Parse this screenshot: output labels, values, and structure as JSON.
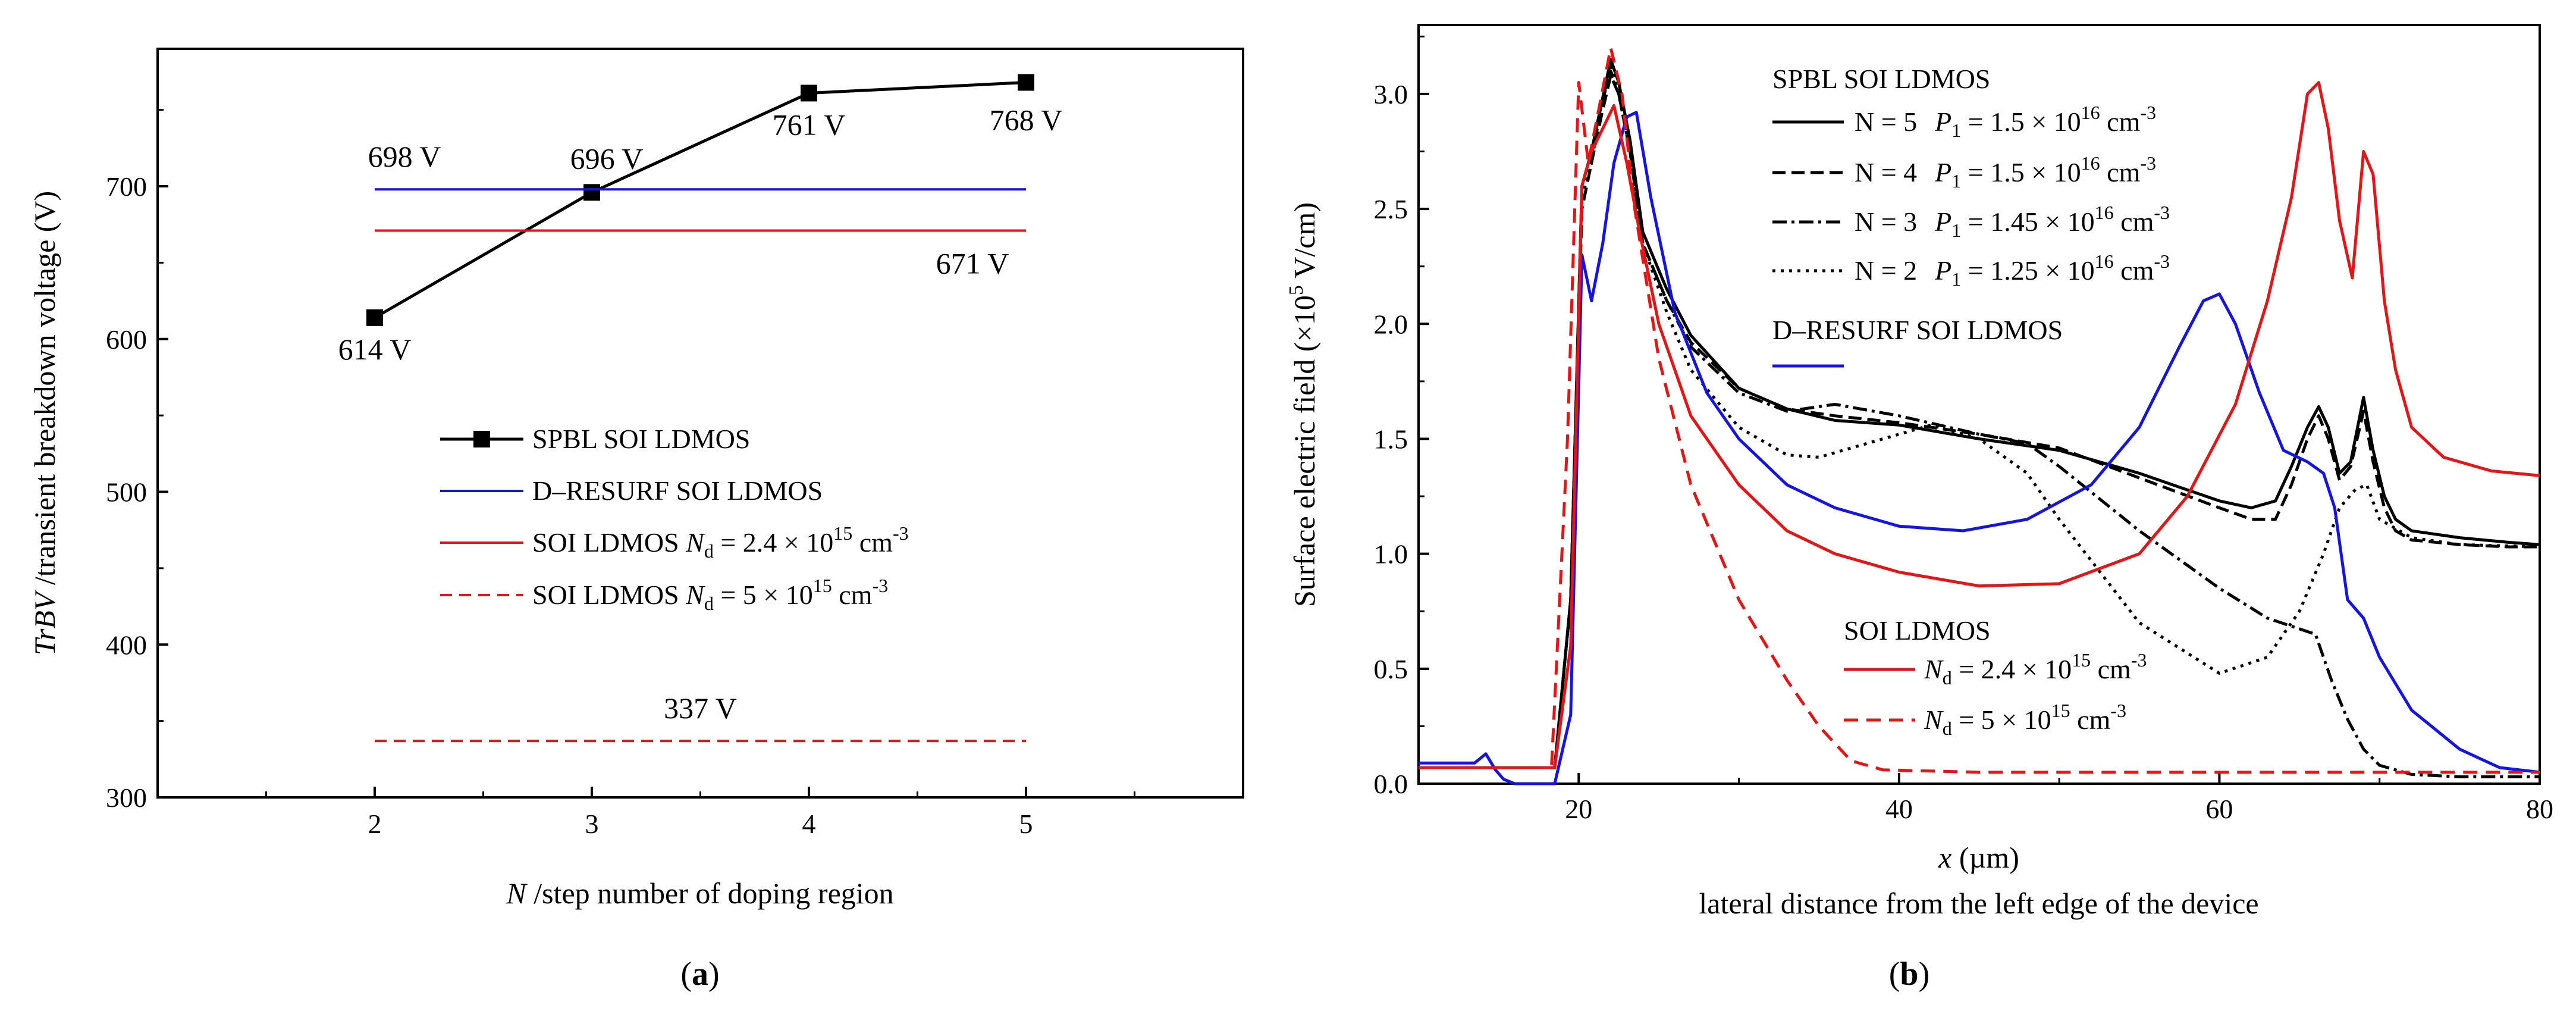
{
  "chart_data": [
    {
      "panel_label": "a",
      "type": "line",
      "xlabel_italic": "N",
      "xlabel_rest": " /step number of doping region",
      "ylabel_italic": "TrBV",
      "ylabel_rest": " /transient breakdown voltage (V)",
      "xlim": [
        1,
        6
      ],
      "ylim": [
        300,
        790
      ],
      "xticks": [
        2,
        3,
        4,
        5
      ],
      "yticks": [
        300,
        400,
        500,
        600,
        700
      ],
      "series": [
        {
          "key": "spbl",
          "name": "SPBL SOI LDMOS",
          "color": "#000000",
          "style": "solid-square",
          "x": [
            2,
            3,
            4,
            5
          ],
          "y": [
            614,
            696,
            761,
            768
          ]
        },
        {
          "key": "dresurf",
          "name": "D–RESURF SOI LDMOS",
          "color": "#1414e6",
          "style": "solid",
          "x": [
            2,
            5
          ],
          "y": [
            698,
            698
          ]
        },
        {
          "key": "soi24",
          "name_pre": "SOI LDMOS ",
          "name_var": "N",
          "name_sub": "d",
          "name_mid": " = 2.4 × 10",
          "name_exp": "15",
          "name_post": " cm",
          "name_exp2": "-3",
          "color": "#e61414",
          "style": "solid",
          "x": [
            2,
            5
          ],
          "y": [
            671,
            671
          ]
        },
        {
          "key": "soi5",
          "name_pre": "SOI LDMOS ",
          "name_var": "N",
          "name_sub": "d",
          "name_mid": " = 5 × 10",
          "name_exp": "15",
          "name_post": " cm",
          "name_exp2": "-3",
          "color": "#e61414",
          "style": "dashed",
          "x": [
            2,
            5
          ],
          "y": [
            337,
            337
          ]
        }
      ],
      "annotations": [
        {
          "text": "614 V",
          "x": 2.0,
          "y": 614
        },
        {
          "text": "696 V",
          "x": 3.0,
          "y": 696
        },
        {
          "text": "761 V",
          "x": 4.0,
          "y": 761
        },
        {
          "text": "768 V",
          "x": 5.0,
          "y": 768
        },
        {
          "text": "698 V",
          "x": 2.0,
          "y": 698
        },
        {
          "text": "671 V",
          "x": 5.0,
          "y": 671
        },
        {
          "text": "337 V",
          "x": 3.5,
          "y": 337
        }
      ]
    },
    {
      "panel_label": "b",
      "type": "line",
      "xlabel_italic": "x",
      "xlabel_rest": " (µm)",
      "xlabel2": "lateral distance from the left edge of the device",
      "ylabel_pre": "Surface electric field  (×10",
      "ylabel_exp": "5",
      "ylabel_post": " V/cm)",
      "xlim": [
        10,
        80
      ],
      "ylim": [
        0,
        3.3
      ],
      "xticks": [
        20,
        40,
        60,
        80
      ],
      "yticks": [
        0.0,
        0.5,
        1.0,
        1.5,
        2.0,
        2.5,
        3.0
      ],
      "legend_group1_title": "SPBL SOI LDMOS",
      "legend_group2_title": "D–RESURF SOI LDMOS",
      "legend_group3_title": "SOI LDMOS",
      "series": [
        {
          "key": "n5",
          "label_n": "N = 5",
          "label_p": "P",
          "label_sub": "1",
          "label_val": " = 1.5 × 10",
          "label_exp": "16",
          "label_unit": " cm",
          "label_exp2": "-3",
          "color": "#000000",
          "dash": "none",
          "x": [
            10,
            18.5,
            19.5,
            20.2,
            20.8,
            21.4,
            22.0,
            22.5,
            23.2,
            24.0,
            25.5,
            27,
            30,
            33,
            36,
            40,
            45,
            50,
            55,
            60,
            62,
            63.5,
            64.5,
            65.5,
            66.2,
            66.8,
            67.5,
            68.2,
            69.0,
            69.6,
            70.3,
            71.0,
            72,
            75,
            78,
            80
          ],
          "y": [
            0.07,
            0.07,
            0.8,
            2.6,
            2.75,
            2.95,
            3.15,
            3.05,
            2.8,
            2.4,
            2.15,
            1.95,
            1.72,
            1.63,
            1.58,
            1.56,
            1.5,
            1.45,
            1.35,
            1.23,
            1.2,
            1.23,
            1.38,
            1.55,
            1.64,
            1.55,
            1.35,
            1.4,
            1.68,
            1.45,
            1.25,
            1.15,
            1.1,
            1.07,
            1.05,
            1.04
          ]
        },
        {
          "key": "n4",
          "label_n": "N = 4",
          "label_p": "P",
          "label_sub": "1",
          "label_val": " = 1.5 × 10",
          "label_exp": "16",
          "label_unit": " cm",
          "label_exp2": "-3",
          "color": "#000000",
          "dash": "22,10",
          "x": [
            10,
            18.5,
            19.5,
            20.2,
            20.8,
            21.4,
            22.0,
            22.5,
            23.2,
            24.0,
            25.5,
            27,
            30,
            33,
            36,
            40,
            45,
            50,
            55,
            60,
            62,
            63.5,
            64.5,
            65.5,
            66.2,
            66.8,
            67.5,
            68.2,
            69.0,
            69.6,
            70.3,
            71.0,
            72,
            75,
            78,
            80
          ],
          "y": [
            0.07,
            0.07,
            0.8,
            2.5,
            2.7,
            2.9,
            3.08,
            3.0,
            2.75,
            2.35,
            2.1,
            1.92,
            1.72,
            1.63,
            1.6,
            1.57,
            1.52,
            1.46,
            1.33,
            1.2,
            1.15,
            1.15,
            1.3,
            1.5,
            1.6,
            1.5,
            1.32,
            1.38,
            1.62,
            1.4,
            1.2,
            1.1,
            1.06,
            1.04,
            1.03,
            1.03
          ]
        },
        {
          "key": "n3",
          "label_n": "N = 3",
          "label_p": "P",
          "label_sub": "1",
          "label_val": " = 1.45 × 10",
          "label_exp": "16",
          "label_unit": " cm",
          "label_exp2": "-3",
          "color": "#000000",
          "dash": "24,8,5,8",
          "x": [
            10,
            18.5,
            19.5,
            20.2,
            20.8,
            21.4,
            22.0,
            22.5,
            23.2,
            24.0,
            25.5,
            27,
            30,
            33,
            36,
            40,
            45,
            48,
            50,
            55,
            60,
            63,
            66,
            67,
            68,
            69,
            70,
            72,
            75,
            80
          ],
          "y": [
            0.07,
            0.07,
            0.8,
            2.6,
            2.75,
            2.95,
            3.1,
            3.0,
            2.75,
            2.35,
            2.1,
            1.9,
            1.7,
            1.62,
            1.65,
            1.6,
            1.52,
            1.48,
            1.38,
            1.1,
            0.85,
            0.72,
            0.65,
            0.45,
            0.28,
            0.15,
            0.08,
            0.04,
            0.03,
            0.03
          ]
        },
        {
          "key": "n2",
          "label_n": "N = 2",
          "label_p": "P",
          "label_sub": "1",
          "label_val": " = 1.25 × 10",
          "label_exp": "16",
          "label_unit": " cm",
          "label_exp2": "-3",
          "color": "#000000",
          "dash": "5,9",
          "x": [
            10,
            18.5,
            19.5,
            20.2,
            20.8,
            21.4,
            22.0,
            22.5,
            23.2,
            24.0,
            25.5,
            27,
            30,
            33,
            35,
            38,
            42,
            45,
            48,
            50,
            55,
            60,
            63,
            65,
            66.5,
            67.5,
            68.5,
            69.2,
            70,
            72,
            75,
            80
          ],
          "y": [
            0.07,
            0.07,
            0.8,
            2.55,
            2.7,
            2.95,
            3.12,
            3.0,
            2.75,
            2.35,
            2.05,
            1.8,
            1.55,
            1.43,
            1.42,
            1.48,
            1.56,
            1.5,
            1.35,
            1.15,
            0.7,
            0.48,
            0.55,
            0.75,
            1.0,
            1.2,
            1.28,
            1.3,
            1.15,
            1.07,
            1.04,
            1.03
          ]
        },
        {
          "key": "dres",
          "color": "#1414e6",
          "dash": "none",
          "x": [
            10,
            13.5,
            14.2,
            14.8,
            15.3,
            16,
            18.5,
            19.5,
            20.2,
            20.8,
            21.5,
            22.2,
            23.0,
            23.6,
            24.5,
            26,
            28,
            30,
            33,
            36,
            40,
            44,
            48,
            52,
            55,
            57.5,
            59,
            60,
            61,
            62.5,
            64,
            65.5,
            66.5,
            67.2,
            68,
            69,
            70,
            72,
            75,
            77.5,
            80
          ],
          "y": [
            0.09,
            0.09,
            0.13,
            0.06,
            0.02,
            0.0,
            0.0,
            0.3,
            2.3,
            2.1,
            2.35,
            2.7,
            2.9,
            2.92,
            2.55,
            2.05,
            1.7,
            1.5,
            1.3,
            1.2,
            1.12,
            1.1,
            1.15,
            1.3,
            1.55,
            1.9,
            2.1,
            2.13,
            2.0,
            1.7,
            1.45,
            1.4,
            1.35,
            1.2,
            0.8,
            0.72,
            0.55,
            0.32,
            0.15,
            0.07,
            0.05
          ]
        },
        {
          "key": "soi24",
          "label_pre": "N",
          "label_sub": "d",
          "label_val": " = 2.4 × 10",
          "label_exp": "15",
          "label_unit": " cm",
          "label_exp2": "-3",
          "color": "#e61414",
          "dash": "none",
          "x": [
            10,
            18.5,
            19.5,
            20.2,
            20.8,
            21.5,
            22.2,
            23.0,
            23.8,
            25,
            27,
            30,
            33,
            36,
            40,
            45,
            50,
            55,
            58,
            61,
            63,
            64.5,
            65.5,
            66.2,
            66.8,
            67.5,
            68.3,
            69.0,
            69.6,
            70.3,
            71,
            72,
            74,
            77,
            80
          ],
          "y": [
            0.07,
            0.07,
            0.6,
            2.6,
            2.75,
            2.85,
            2.95,
            2.7,
            2.4,
            2.0,
            1.6,
            1.3,
            1.1,
            1.0,
            0.92,
            0.86,
            0.87,
            1.0,
            1.25,
            1.65,
            2.1,
            2.55,
            3.0,
            3.05,
            2.85,
            2.45,
            2.2,
            2.75,
            2.65,
            2.1,
            1.8,
            1.55,
            1.42,
            1.36,
            1.34
          ]
        },
        {
          "key": "soi5",
          "label_pre": "N",
          "label_sub": "d",
          "label_val": " = 5 × 10",
          "label_exp": "15",
          "label_unit": " cm",
          "label_exp2": "-3",
          "color": "#e61414",
          "dash": "24,14",
          "x": [
            10,
            18.3,
            19.3,
            20.0,
            20.6,
            21.3,
            22.0,
            22.7,
            23.5,
            25,
            27,
            30,
            33,
            35,
            37,
            39,
            45,
            60,
            70,
            80
          ],
          "y": [
            0.07,
            0.07,
            1.5,
            3.05,
            2.7,
            2.95,
            3.2,
            3.0,
            2.5,
            1.85,
            1.3,
            0.8,
            0.45,
            0.25,
            0.1,
            0.06,
            0.05,
            0.05,
            0.05,
            0.05
          ]
        }
      ]
    }
  ]
}
